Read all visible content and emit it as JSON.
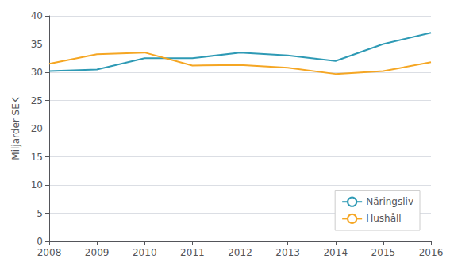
{
  "chart_data": {
    "type": "line",
    "x": [
      2008,
      2009,
      2010,
      2011,
      2012,
      2013,
      2014,
      2015,
      2016
    ],
    "series": [
      {
        "name": "Näringsliv",
        "color": "#2E9AB5",
        "values": [
          30.2,
          30.5,
          32.5,
          32.5,
          33.5,
          33.0,
          32.0,
          35.0,
          37.0
        ]
      },
      {
        "name": "Hushåll",
        "color": "#F5A623",
        "values": [
          31.5,
          33.2,
          33.5,
          31.2,
          31.3,
          30.8,
          29.7,
          30.2,
          31.8
        ]
      }
    ],
    "ylabel": "Miljarder SEK",
    "xlim": [
      2008,
      2016
    ],
    "xticks": [
      2008,
      2009,
      2010,
      2011,
      2012,
      2013,
      2014,
      2015,
      2016
    ],
    "ylim": [
      0,
      40
    ],
    "yticks": [
      0,
      5,
      10,
      15,
      20,
      25,
      30,
      35,
      40
    ],
    "grid": true,
    "legend": "lower right"
  }
}
